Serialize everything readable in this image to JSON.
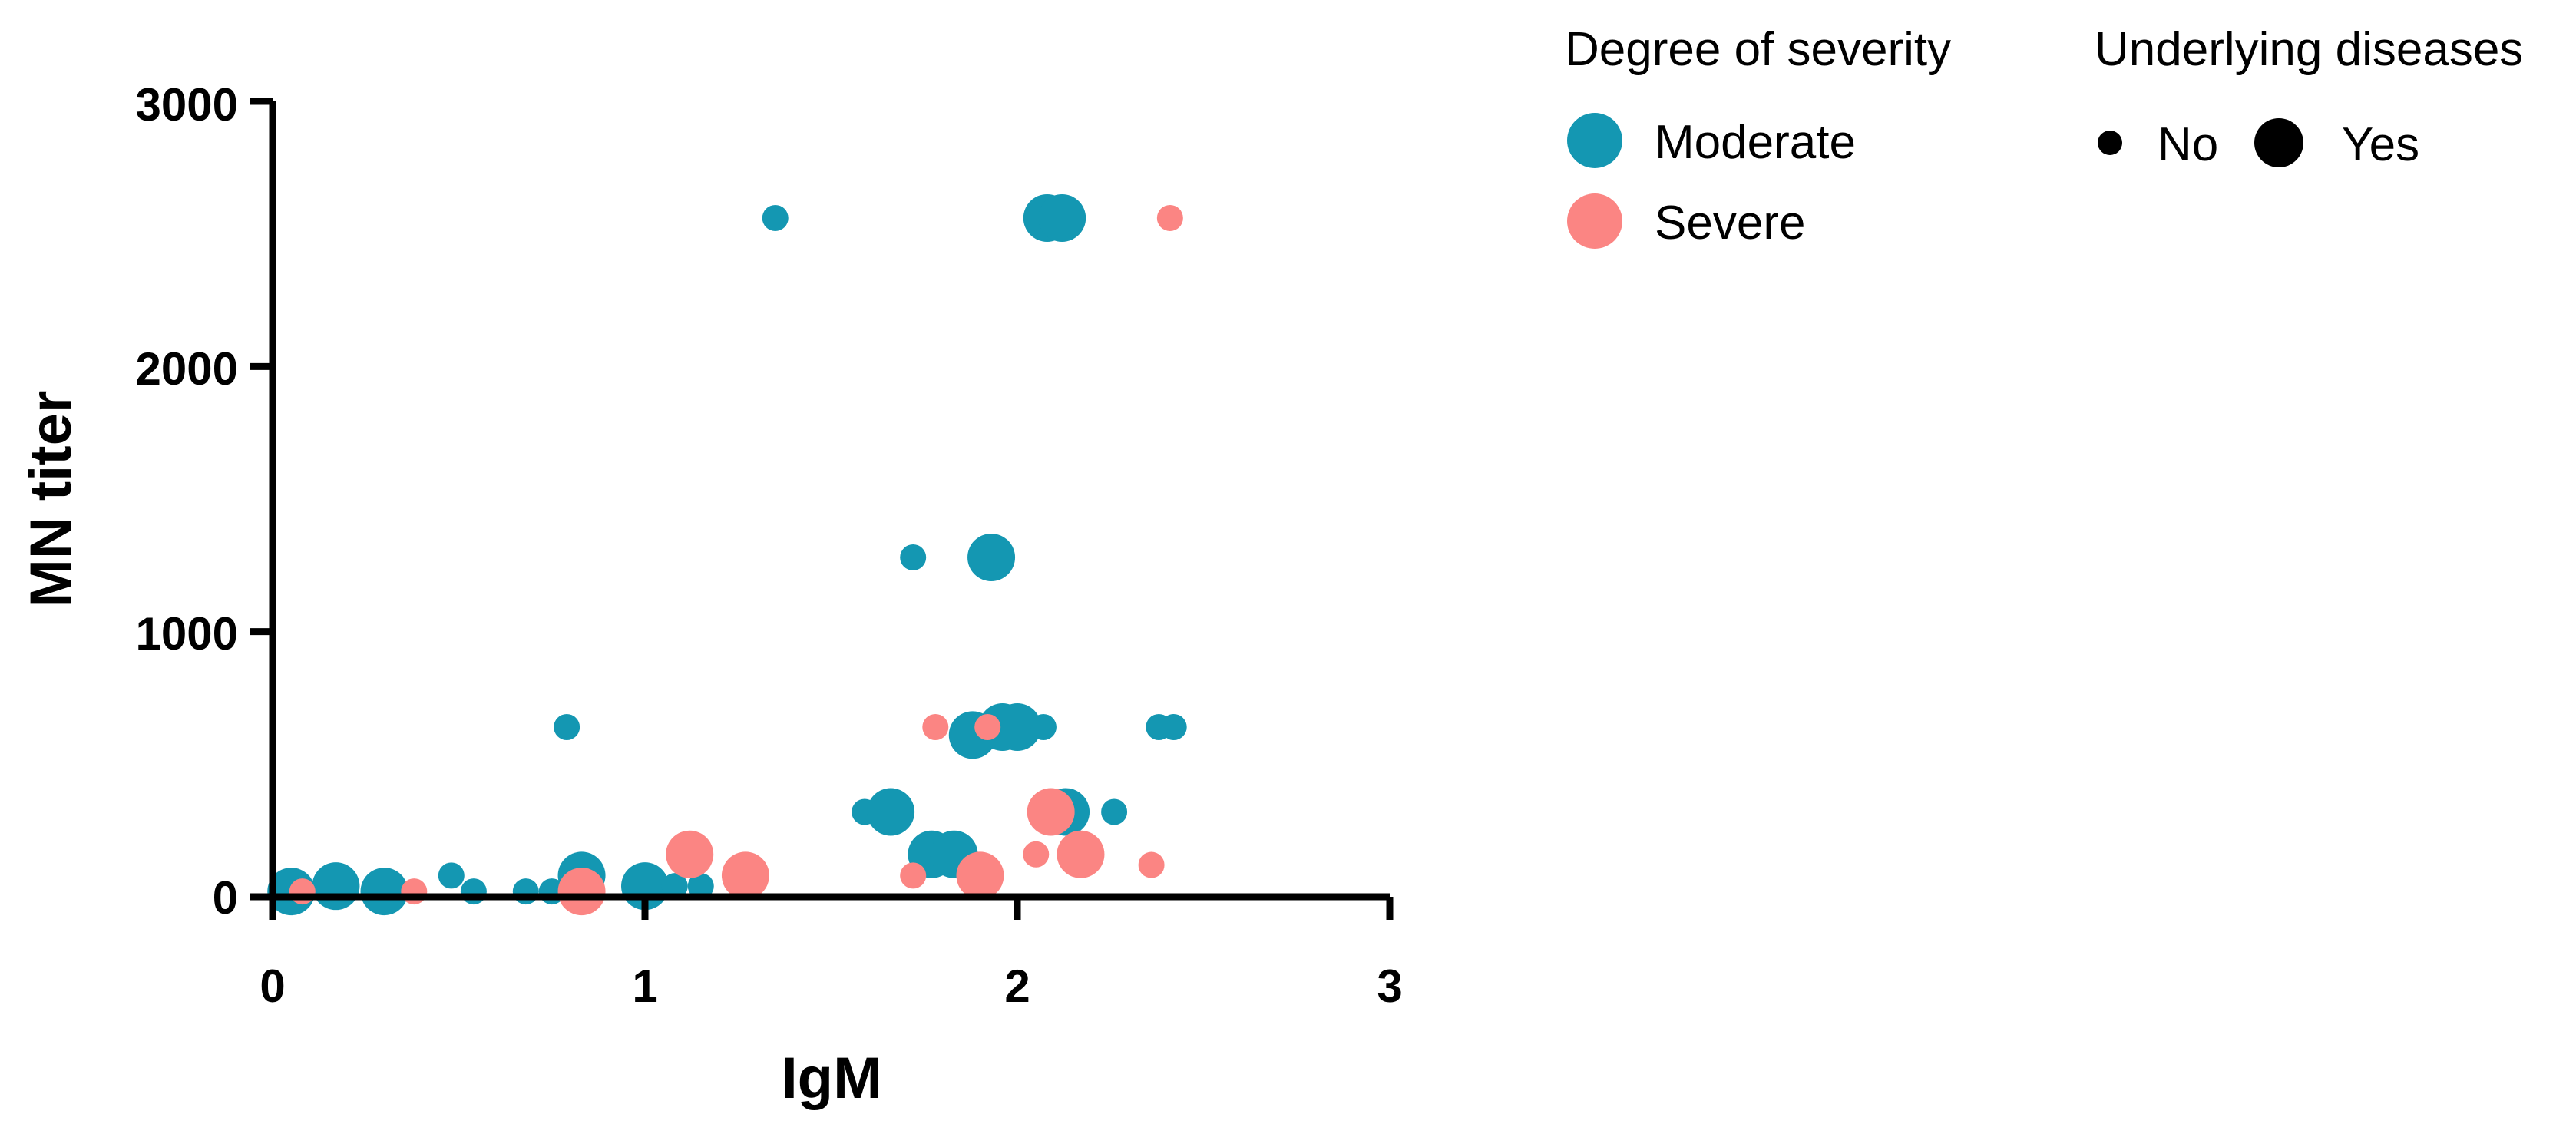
{
  "chart_data": {
    "type": "scatter",
    "xlabel": "IgM",
    "ylabel": "MN titer",
    "xlim": [
      0,
      3
    ],
    "ylim": [
      0,
      3000
    ],
    "x_ticks": [
      "0",
      "1",
      "2",
      "3"
    ],
    "y_ticks": [
      "0",
      "1000",
      "2000",
      "3000"
    ],
    "x_tick_values": [
      0,
      1,
      2,
      3
    ],
    "y_tick_values": [
      0,
      1000,
      2000,
      3000
    ],
    "colors": {
      "Moderate": "#1497b2",
      "Severe": "#fb8583"
    },
    "legend": {
      "severity_title": "Degree of severity",
      "severity_items": [
        "Moderate",
        "Severe"
      ],
      "diseases_title": "Underlying diseases",
      "diseases_items": [
        "No",
        "Yes"
      ]
    },
    "series": [
      {
        "name": "Moderate",
        "points": [
          {
            "x": 0.05,
            "y": 20,
            "underlying": "Yes"
          },
          {
            "x": 0.17,
            "y": 40,
            "underlying": "Yes"
          },
          {
            "x": 0.3,
            "y": 20,
            "underlying": "Yes"
          },
          {
            "x": 0.48,
            "y": 80,
            "underlying": "No"
          },
          {
            "x": 0.54,
            "y": 20,
            "underlying": "No"
          },
          {
            "x": 0.68,
            "y": 20,
            "underlying": "No"
          },
          {
            "x": 0.75,
            "y": 20,
            "underlying": "No"
          },
          {
            "x": 0.79,
            "y": 640,
            "underlying": "No"
          },
          {
            "x": 0.83,
            "y": 80,
            "underlying": "Yes"
          },
          {
            "x": 1.0,
            "y": 40,
            "underlying": "Yes"
          },
          {
            "x": 1.08,
            "y": 40,
            "underlying": "No"
          },
          {
            "x": 1.15,
            "y": 40,
            "underlying": "No"
          },
          {
            "x": 1.35,
            "y": 2560,
            "underlying": "No"
          },
          {
            "x": 1.59,
            "y": 320,
            "underlying": "No"
          },
          {
            "x": 1.66,
            "y": 320,
            "underlying": "Yes"
          },
          {
            "x": 1.72,
            "y": 1280,
            "underlying": "No"
          },
          {
            "x": 1.77,
            "y": 160,
            "underlying": "Yes"
          },
          {
            "x": 1.83,
            "y": 160,
            "underlying": "Yes"
          },
          {
            "x": 1.88,
            "y": 610,
            "underlying": "Yes"
          },
          {
            "x": 1.93,
            "y": 1280,
            "underlying": "Yes"
          },
          {
            "x": 1.96,
            "y": 640,
            "underlying": "Yes"
          },
          {
            "x": 2.0,
            "y": 640,
            "underlying": "Yes"
          },
          {
            "x": 2.07,
            "y": 640,
            "underlying": "No"
          },
          {
            "x": 2.08,
            "y": 2560,
            "underlying": "Yes"
          },
          {
            "x": 2.12,
            "y": 2560,
            "underlying": "Yes"
          },
          {
            "x": 2.13,
            "y": 320,
            "underlying": "Yes"
          },
          {
            "x": 2.26,
            "y": 320,
            "underlying": "No"
          },
          {
            "x": 2.38,
            "y": 640,
            "underlying": "No"
          },
          {
            "x": 2.42,
            "y": 640,
            "underlying": "No"
          }
        ]
      },
      {
        "name": "Severe",
        "points": [
          {
            "x": 0.08,
            "y": 20,
            "underlying": "No"
          },
          {
            "x": 0.38,
            "y": 20,
            "underlying": "No"
          },
          {
            "x": 0.83,
            "y": 20,
            "underlying": "Yes"
          },
          {
            "x": 1.12,
            "y": 160,
            "underlying": "Yes"
          },
          {
            "x": 1.27,
            "y": 80,
            "underlying": "Yes"
          },
          {
            "x": 1.72,
            "y": 80,
            "underlying": "No"
          },
          {
            "x": 1.78,
            "y": 640,
            "underlying": "No"
          },
          {
            "x": 1.9,
            "y": 80,
            "underlying": "Yes"
          },
          {
            "x": 1.92,
            "y": 640,
            "underlying": "No"
          },
          {
            "x": 2.05,
            "y": 160,
            "underlying": "No"
          },
          {
            "x": 2.09,
            "y": 320,
            "underlying": "Yes"
          },
          {
            "x": 2.17,
            "y": 160,
            "underlying": "Yes"
          },
          {
            "x": 2.36,
            "y": 120,
            "underlying": "No"
          },
          {
            "x": 2.41,
            "y": 2560,
            "underlying": "No"
          }
        ]
      }
    ]
  }
}
